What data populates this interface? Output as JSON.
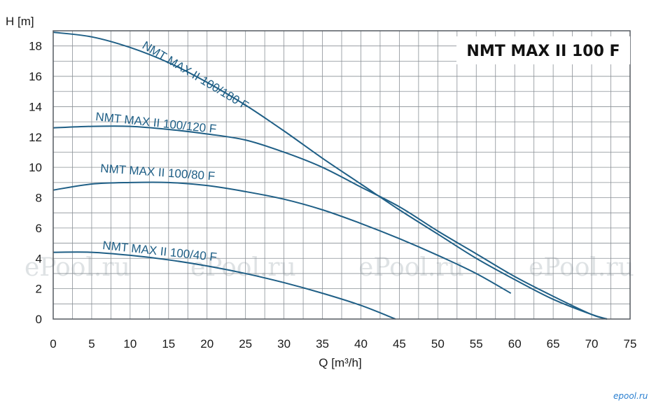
{
  "chart_data": {
    "type": "line",
    "title": "NMT MAX II 100 F",
    "xlabel": "Q [m³/h]",
    "ylabel": "H [m]",
    "xlim": [
      0,
      75
    ],
    "ylim": [
      0,
      19
    ],
    "xticks": [
      0,
      5,
      10,
      15,
      20,
      25,
      30,
      35,
      40,
      45,
      50,
      55,
      60,
      65,
      70,
      75
    ],
    "yticks": [
      0,
      2,
      4,
      6,
      8,
      10,
      12,
      14,
      16,
      18
    ],
    "grid": true,
    "series": [
      {
        "name": "NMT MAX II 100/180 F",
        "x": [
          0,
          5,
          10,
          15,
          20,
          25,
          30,
          35,
          40,
          45,
          50,
          55,
          60,
          65,
          70,
          72
        ],
        "y": [
          18.9,
          18.6,
          17.9,
          16.9,
          15.6,
          14.1,
          12.4,
          10.6,
          8.9,
          7.2,
          5.6,
          4.0,
          2.6,
          1.3,
          0.3,
          0
        ]
      },
      {
        "name": "NMT MAX II 100/120 F",
        "x": [
          0,
          5,
          10,
          15,
          20,
          25,
          30,
          35,
          40,
          45,
          50,
          55,
          60,
          65,
          70,
          72
        ],
        "y": [
          12.6,
          12.7,
          12.7,
          12.5,
          12.2,
          11.8,
          11.0,
          10.0,
          8.7,
          7.4,
          5.8,
          4.3,
          2.8,
          1.5,
          0.3,
          0
        ]
      },
      {
        "name": "NMT MAX II 100/80 F",
        "x": [
          0,
          5,
          10,
          15,
          20,
          25,
          30,
          35,
          40,
          45,
          50,
          55,
          59.5
        ],
        "y": [
          8.5,
          8.9,
          9.0,
          9.0,
          8.8,
          8.4,
          7.9,
          7.2,
          6.3,
          5.3,
          4.2,
          3.0,
          1.7
        ]
      },
      {
        "name": "NMT MAX II 100/40 F",
        "x": [
          0,
          5,
          10,
          15,
          20,
          25,
          30,
          35,
          40,
          44.5
        ],
        "y": [
          4.4,
          4.4,
          4.2,
          3.9,
          3.5,
          3.0,
          2.4,
          1.7,
          0.9,
          0
        ]
      }
    ]
  },
  "watermarks": [
    "ePool.ru",
    "ePool.ru",
    "ePool.ru",
    "ePool.ru"
  ],
  "corner_mark": "epool.ru",
  "colors": {
    "curve": "#1f5f86",
    "grid": "#8a9096",
    "frame": "#555a60",
    "watermark": "#d9dde0"
  }
}
